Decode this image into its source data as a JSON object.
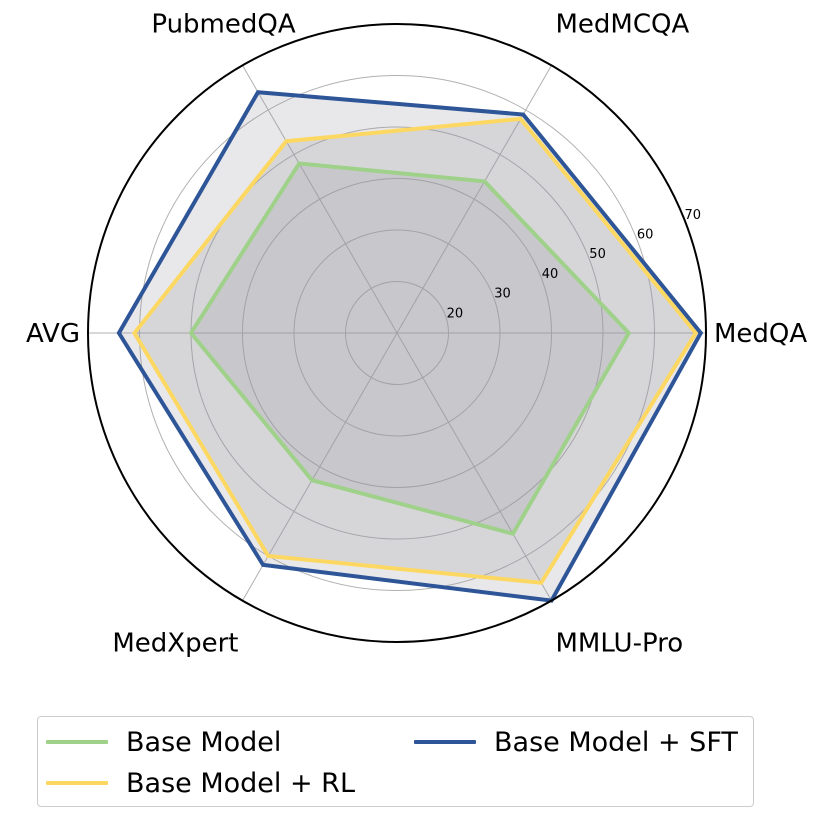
{
  "chart_data": {
    "type": "radar",
    "axes": [
      "MedQA",
      "MedMCQA",
      "PubmedQA",
      "AVG",
      "MedXpert",
      "MMLU-Pro"
    ],
    "r_ticks": [
      20,
      30,
      40,
      50,
      60,
      70
    ],
    "r_range": [
      10,
      70
    ],
    "grid": true,
    "legend_position": "bottom",
    "series": [
      {
        "name": "Base Model",
        "color": "#9fd18a",
        "values": [
          55,
          44,
          48,
          50,
          43,
          55
        ]
      },
      {
        "name": "Base Model + RL",
        "color": "#fcd863",
        "values": [
          68,
          58,
          53,
          61,
          60,
          66
        ]
      },
      {
        "name": "Base Model + SFT",
        "color": "#2e5597",
        "values": [
          69,
          59,
          64,
          64,
          62,
          70
        ]
      }
    ]
  },
  "legend": {
    "items": [
      {
        "label": "Base Model",
        "color": "#9fd18a"
      },
      {
        "label": "Base Model + RL",
        "color": "#fcd863"
      },
      {
        "label": "Base Model + SFT",
        "color": "#2e5597"
      }
    ]
  }
}
